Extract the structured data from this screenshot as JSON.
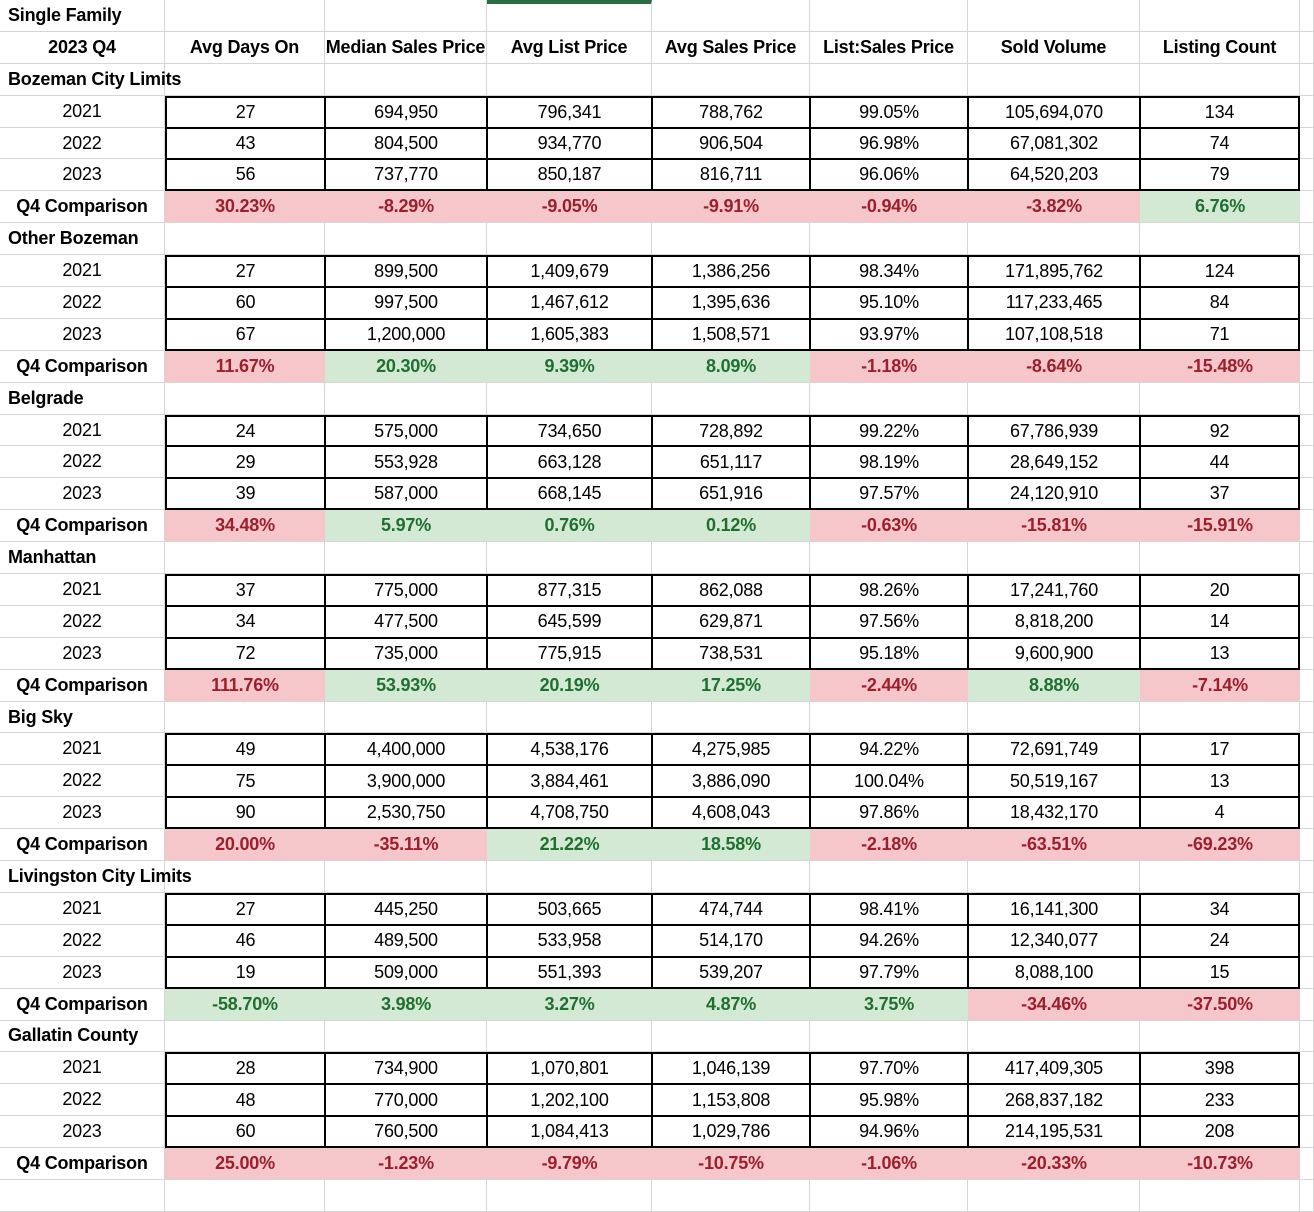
{
  "meta": {
    "title": "Single Family",
    "period": "2023 Q4"
  },
  "colors": {
    "fill_red": "#F5C7CB",
    "fill_green": "#D4E9D3",
    "text_red": "#9C1F2D",
    "text_green": "#1E7031",
    "accent_bar_green": "#2E6B43",
    "gridline": "#D6D6D6",
    "data_border": "#000000"
  },
  "columns": [
    "Avg Days On",
    "Median Sales Price",
    "Avg List Price",
    "Avg Sales Price",
    "List:Sales Price",
    "Sold Volume",
    "Listing Count"
  ],
  "comparison_label": "Q4 Comparison",
  "sections": [
    {
      "name": "Bozeman City Limits",
      "years": [
        {
          "year": "2021",
          "values": [
            "27",
            "694,950",
            "796,341",
            "788,762",
            "99.05%",
            "105,694,070",
            "134"
          ]
        },
        {
          "year": "2022",
          "values": [
            "43",
            "804,500",
            "934,770",
            "906,504",
            "96.98%",
            "67,081,302",
            "74"
          ]
        },
        {
          "year": "2023",
          "values": [
            "56",
            "737,770",
            "850,187",
            "816,711",
            "96.06%",
            "64,520,203",
            "79"
          ]
        }
      ],
      "comparison": {
        "values": [
          "30.23%",
          "-8.29%",
          "-9.05%",
          "-9.91%",
          "-0.94%",
          "-3.82%",
          "6.76%"
        ],
        "status": [
          "red",
          "red",
          "red",
          "red",
          "red",
          "red",
          "green"
        ]
      }
    },
    {
      "name": "Other Bozeman",
      "years": [
        {
          "year": "2021",
          "values": [
            "27",
            "899,500",
            "1,409,679",
            "1,386,256",
            "98.34%",
            "171,895,762",
            "124"
          ]
        },
        {
          "year": "2022",
          "values": [
            "60",
            "997,500",
            "1,467,612",
            "1,395,636",
            "95.10%",
            "117,233,465",
            "84"
          ]
        },
        {
          "year": "2023",
          "values": [
            "67",
            "1,200,000",
            "1,605,383",
            "1,508,571",
            "93.97%",
            "107,108,518",
            "71"
          ]
        }
      ],
      "comparison": {
        "values": [
          "11.67%",
          "20.30%",
          "9.39%",
          "8.09%",
          "-1.18%",
          "-8.64%",
          "-15.48%"
        ],
        "status": [
          "red",
          "green",
          "green",
          "green",
          "red",
          "red",
          "red"
        ]
      }
    },
    {
      "name": "Belgrade",
      "years": [
        {
          "year": "2021",
          "values": [
            "24",
            "575,000",
            "734,650",
            "728,892",
            "99.22%",
            "67,786,939",
            "92"
          ]
        },
        {
          "year": "2022",
          "values": [
            "29",
            "553,928",
            "663,128",
            "651,117",
            "98.19%",
            "28,649,152",
            "44"
          ]
        },
        {
          "year": "2023",
          "values": [
            "39",
            "587,000",
            "668,145",
            "651,916",
            "97.57%",
            "24,120,910",
            "37"
          ]
        }
      ],
      "comparison": {
        "values": [
          "34.48%",
          "5.97%",
          "0.76%",
          "0.12%",
          "-0.63%",
          "-15.81%",
          "-15.91%"
        ],
        "status": [
          "red",
          "green",
          "green",
          "green",
          "red",
          "red",
          "red"
        ]
      }
    },
    {
      "name": "Manhattan",
      "years": [
        {
          "year": "2021",
          "values": [
            "37",
            "775,000",
            "877,315",
            "862,088",
            "98.26%",
            "17,241,760",
            "20"
          ]
        },
        {
          "year": "2022",
          "values": [
            "34",
            "477,500",
            "645,599",
            "629,871",
            "97.56%",
            "8,818,200",
            "14"
          ]
        },
        {
          "year": "2023",
          "values": [
            "72",
            "735,000",
            "775,915",
            "738,531",
            "95.18%",
            "9,600,900",
            "13"
          ]
        }
      ],
      "comparison": {
        "values": [
          "111.76%",
          "53.93%",
          "20.19%",
          "17.25%",
          "-2.44%",
          "8.88%",
          "-7.14%"
        ],
        "status": [
          "red",
          "green",
          "green",
          "green",
          "red",
          "green",
          "red"
        ]
      }
    },
    {
      "name": "Big Sky",
      "years": [
        {
          "year": "2021",
          "values": [
            "49",
            "4,400,000",
            "4,538,176",
            "4,275,985",
            "94.22%",
            "72,691,749",
            "17"
          ]
        },
        {
          "year": "2022",
          "values": [
            "75",
            "3,900,000",
            "3,884,461",
            "3,886,090",
            "100.04%",
            "50,519,167",
            "13"
          ]
        },
        {
          "year": "2023",
          "values": [
            "90",
            "2,530,750",
            "4,708,750",
            "4,608,043",
            "97.86%",
            "18,432,170",
            "4"
          ]
        }
      ],
      "comparison": {
        "values": [
          "20.00%",
          "-35.11%",
          "21.22%",
          "18.58%",
          "-2.18%",
          "-63.51%",
          "-69.23%"
        ],
        "status": [
          "red",
          "red",
          "green",
          "green",
          "red",
          "red",
          "red"
        ]
      }
    },
    {
      "name": "Livingston City Limits",
      "years": [
        {
          "year": "2021",
          "values": [
            "27",
            "445,250",
            "503,665",
            "474,744",
            "98.41%",
            "16,141,300",
            "34"
          ]
        },
        {
          "year": "2022",
          "values": [
            "46",
            "489,500",
            "533,958",
            "514,170",
            "94.26%",
            "12,340,077",
            "24"
          ]
        },
        {
          "year": "2023",
          "values": [
            "19",
            "509,000",
            "551,393",
            "539,207",
            "97.79%",
            "8,088,100",
            "15"
          ]
        }
      ],
      "comparison": {
        "values": [
          "-58.70%",
          "3.98%",
          "3.27%",
          "4.87%",
          "3.75%",
          "-34.46%",
          "-37.50%"
        ],
        "status": [
          "green",
          "green",
          "green",
          "green",
          "green",
          "red",
          "red"
        ]
      }
    },
    {
      "name": "Gallatin County",
      "years": [
        {
          "year": "2021",
          "values": [
            "28",
            "734,900",
            "1,070,801",
            "1,046,139",
            "97.70%",
            "417,409,305",
            "398"
          ]
        },
        {
          "year": "2022",
          "values": [
            "48",
            "770,000",
            "1,202,100",
            "1,153,808",
            "95.98%",
            "268,837,182",
            "233"
          ]
        },
        {
          "year": "2023",
          "values": [
            "60",
            "760,500",
            "1,084,413",
            "1,029,786",
            "94.96%",
            "214,195,531",
            "208"
          ]
        }
      ],
      "comparison": {
        "values": [
          "25.00%",
          "-1.23%",
          "-9.79%",
          "-10.75%",
          "-1.06%",
          "-20.33%",
          "-10.73%"
        ],
        "status": [
          "red",
          "red",
          "red",
          "red",
          "red",
          "red",
          "red"
        ]
      }
    }
  ]
}
